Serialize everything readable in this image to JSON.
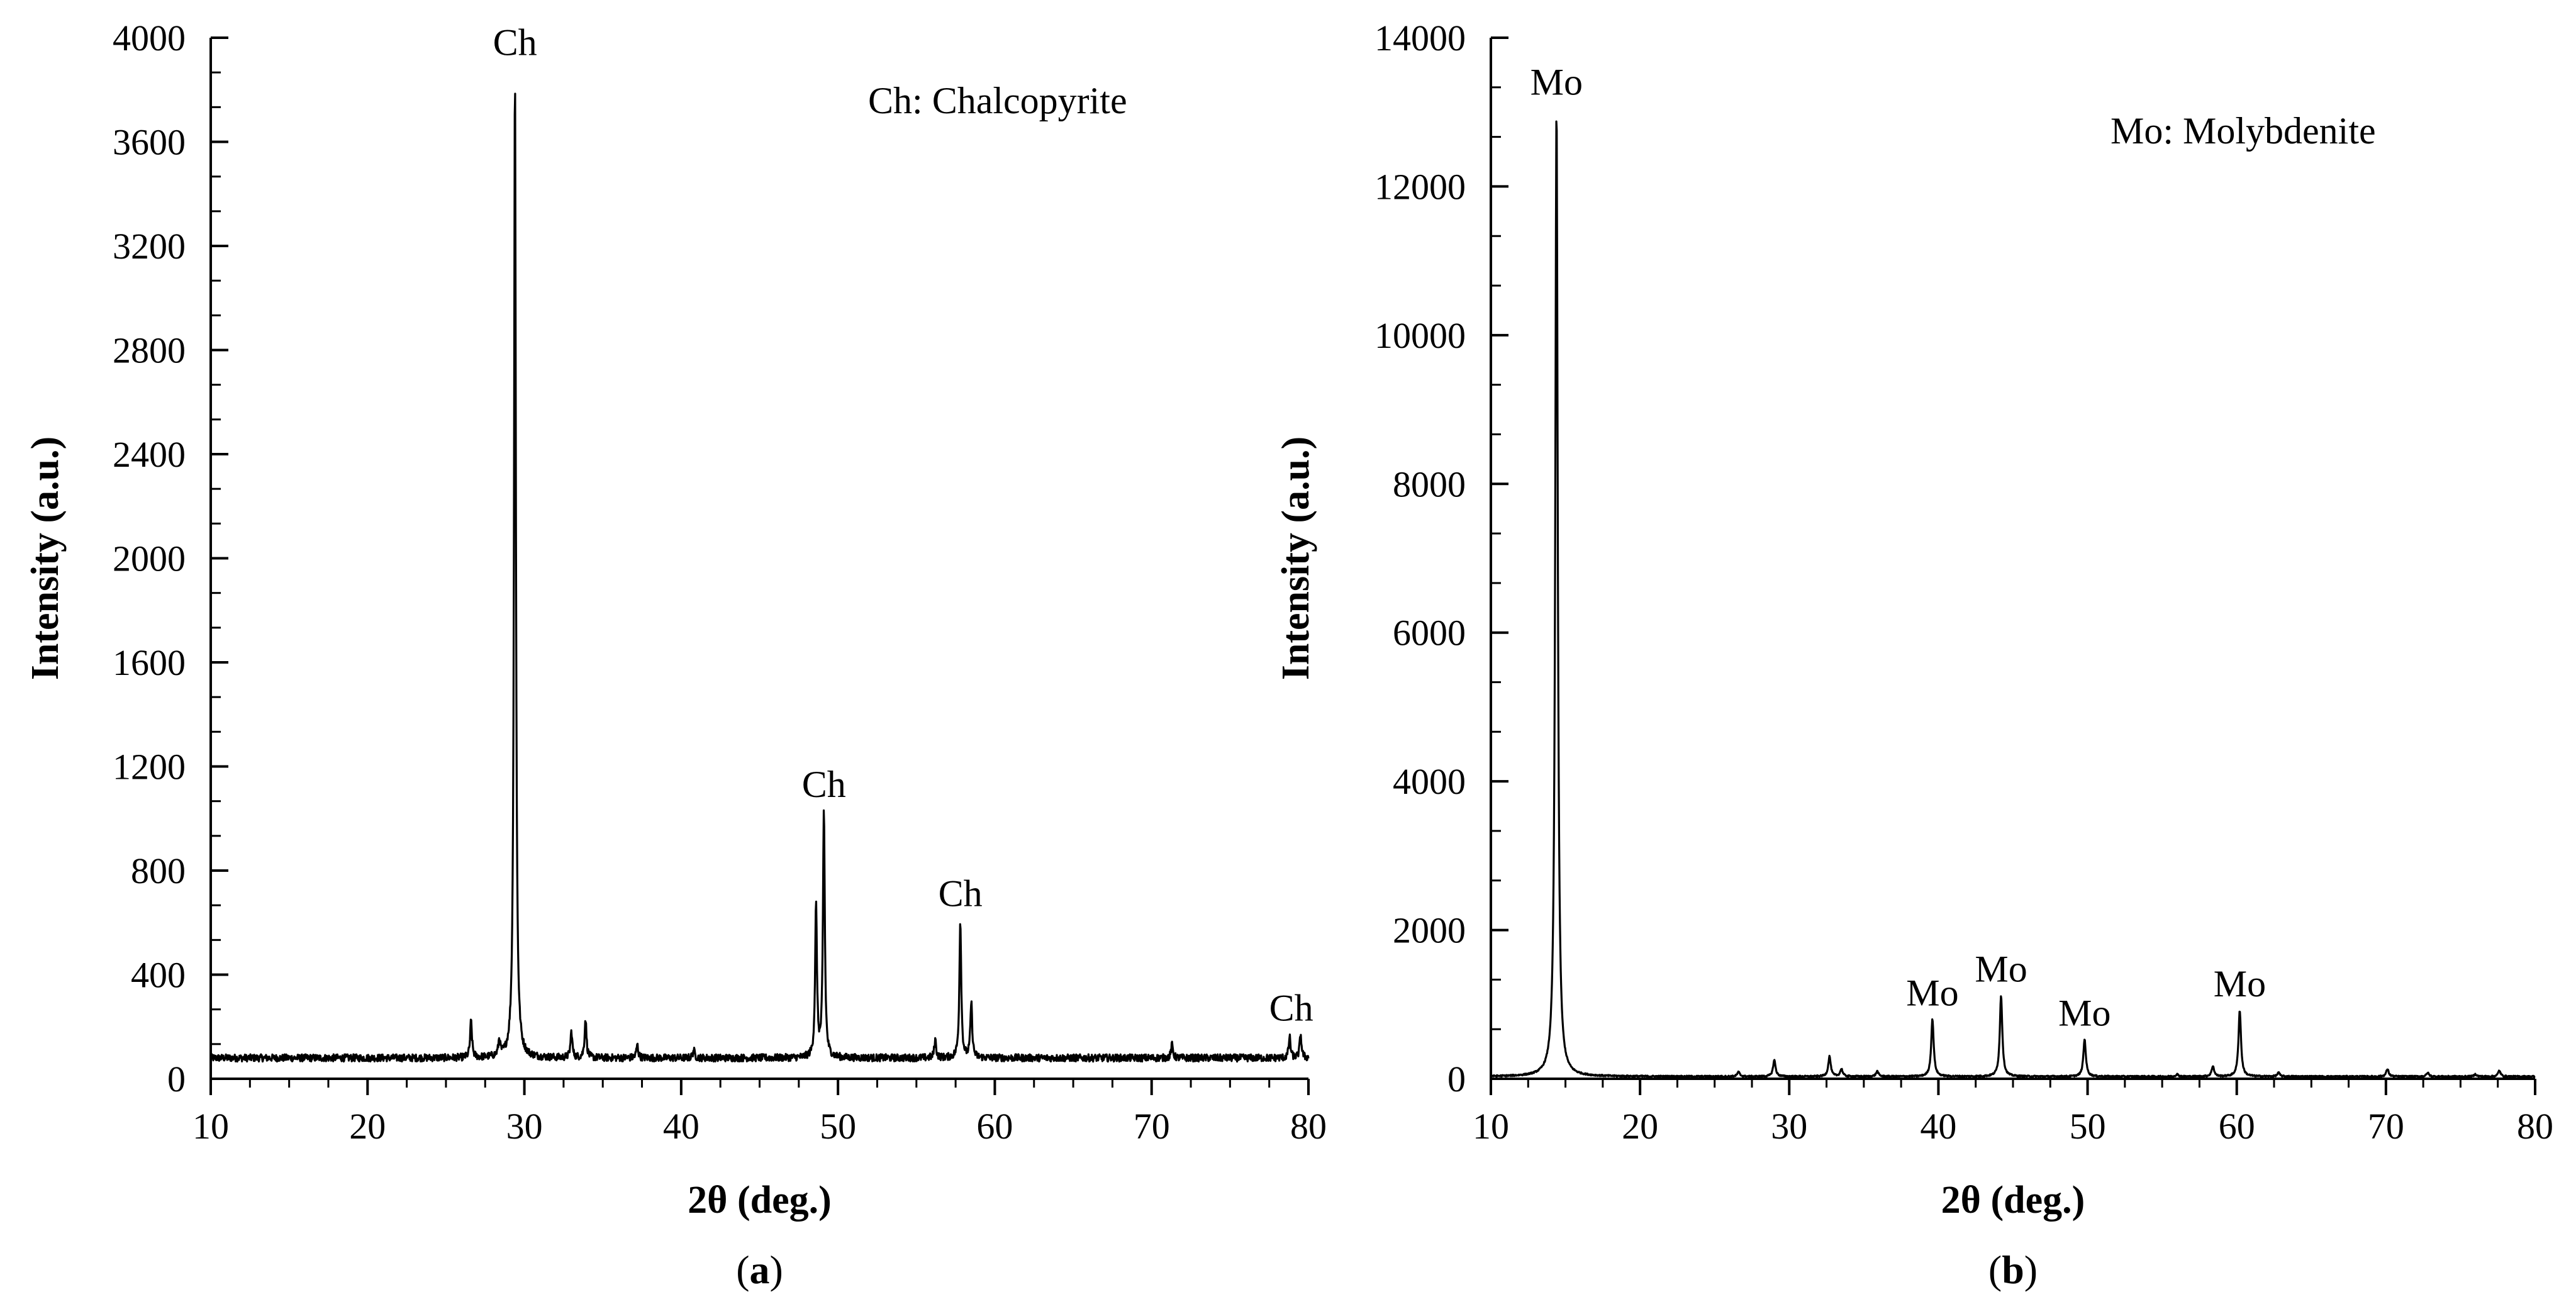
{
  "chart_data": [
    {
      "type": "line",
      "panel": "(a)",
      "panel_letter": "a",
      "xlabel": "2θ (deg.)",
      "ylabel": "Intensity (a.u.)",
      "xlim": [
        10,
        80
      ],
      "ylim": [
        0,
        4000
      ],
      "x_ticks": [
        10,
        20,
        30,
        40,
        50,
        60,
        70,
        80
      ],
      "y_ticks": [
        0,
        400,
        800,
        1200,
        1600,
        2000,
        2400,
        2800,
        3200,
        3600,
        4000
      ],
      "legend_text": "Ch: Chalcopyrite",
      "baseline": 80,
      "peaks": [
        {
          "x": 26.6,
          "y": 220
        },
        {
          "x": 28.4,
          "y": 140
        },
        {
          "x": 29.4,
          "y": 3880
        },
        {
          "x": 33.0,
          "y": 180
        },
        {
          "x": 33.9,
          "y": 230
        },
        {
          "x": 37.2,
          "y": 130
        },
        {
          "x": 40.8,
          "y": 110
        },
        {
          "x": 48.6,
          "y": 660
        },
        {
          "x": 49.1,
          "y": 1030
        },
        {
          "x": 56.2,
          "y": 150
        },
        {
          "x": 57.8,
          "y": 610
        },
        {
          "x": 58.5,
          "y": 290
        },
        {
          "x": 71.3,
          "y": 130
        },
        {
          "x": 78.8,
          "y": 160
        },
        {
          "x": 79.5,
          "y": 170
        }
      ],
      "annotations": [
        {
          "text": "Ch",
          "x": 29.4,
          "y": 3880
        },
        {
          "text": "Ch",
          "x": 49.1,
          "y": 1030
        },
        {
          "text": "Ch",
          "x": 57.8,
          "y": 610
        },
        {
          "text": "Ch",
          "x": 78.9,
          "y": 170
        }
      ]
    },
    {
      "type": "line",
      "panel": "(b)",
      "panel_letter": "b",
      "xlabel": "2θ (deg.)",
      "ylabel": "Intensity (a.u.)",
      "xlim": [
        10,
        80
      ],
      "ylim": [
        0,
        14000
      ],
      "x_ticks": [
        10,
        20,
        30,
        40,
        50,
        60,
        70,
        80
      ],
      "y_ticks": [
        0,
        2000,
        4000,
        6000,
        8000,
        10000,
        12000,
        14000
      ],
      "legend_text": "Mo: Molybdenite",
      "baseline": 30,
      "peaks": [
        {
          "x": 14.4,
          "y": 13050
        },
        {
          "x": 26.6,
          "y": 90
        },
        {
          "x": 29.0,
          "y": 250
        },
        {
          "x": 32.7,
          "y": 300
        },
        {
          "x": 33.5,
          "y": 130
        },
        {
          "x": 35.9,
          "y": 100
        },
        {
          "x": 39.6,
          "y": 800
        },
        {
          "x": 44.2,
          "y": 1120
        },
        {
          "x": 49.8,
          "y": 530
        },
        {
          "x": 56.0,
          "y": 60
        },
        {
          "x": 58.4,
          "y": 170
        },
        {
          "x": 60.2,
          "y": 920
        },
        {
          "x": 62.8,
          "y": 80
        },
        {
          "x": 70.1,
          "y": 130
        },
        {
          "x": 72.8,
          "y": 80
        },
        {
          "x": 76.0,
          "y": 60
        },
        {
          "x": 77.6,
          "y": 110
        }
      ],
      "annotations": [
        {
          "text": "Mo",
          "x": 14.4,
          "y": 13050
        },
        {
          "text": "Mo",
          "x": 39.6,
          "y": 800
        },
        {
          "text": "Mo",
          "x": 44.2,
          "y": 1120
        },
        {
          "text": "Mo",
          "x": 49.8,
          "y": 530
        },
        {
          "text": "Mo",
          "x": 60.2,
          "y": 920
        }
      ]
    }
  ]
}
